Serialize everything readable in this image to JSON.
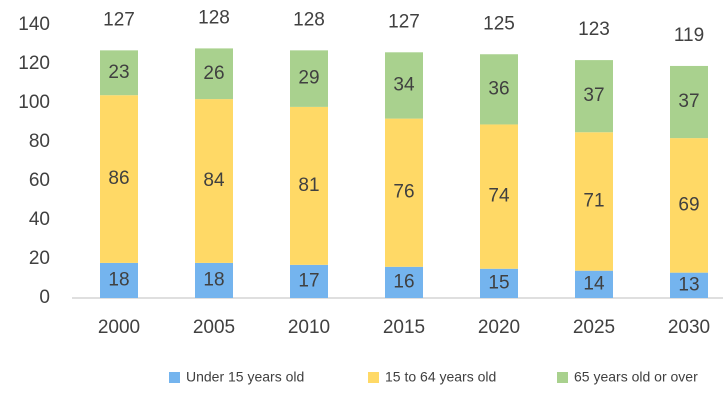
{
  "chart_data": {
    "type": "stacked-bar",
    "categories": [
      "2000",
      "2005",
      "2010",
      "2015",
      "2020",
      "2025",
      "2030"
    ],
    "series": [
      {
        "name": "Under 15 years old",
        "color": "#74b4ee",
        "values": [
          18,
          18,
          17,
          16,
          15,
          14,
          13
        ]
      },
      {
        "name": "15 to 64 years old",
        "color": "#ffd966",
        "values": [
          86,
          84,
          81,
          76,
          74,
          71,
          69
        ]
      },
      {
        "name": "65 years old or over",
        "color": "#a9d18e",
        "values": [
          23,
          26,
          29,
          34,
          36,
          37,
          37
        ]
      }
    ],
    "totals": [
      127,
      128,
      128,
      127,
      125,
      123,
      119
    ],
    "ylim": [
      0,
      140
    ],
    "yticks": [
      0,
      20,
      40,
      60,
      80,
      100,
      120,
      140
    ],
    "grid": false,
    "legend": "bottom"
  }
}
